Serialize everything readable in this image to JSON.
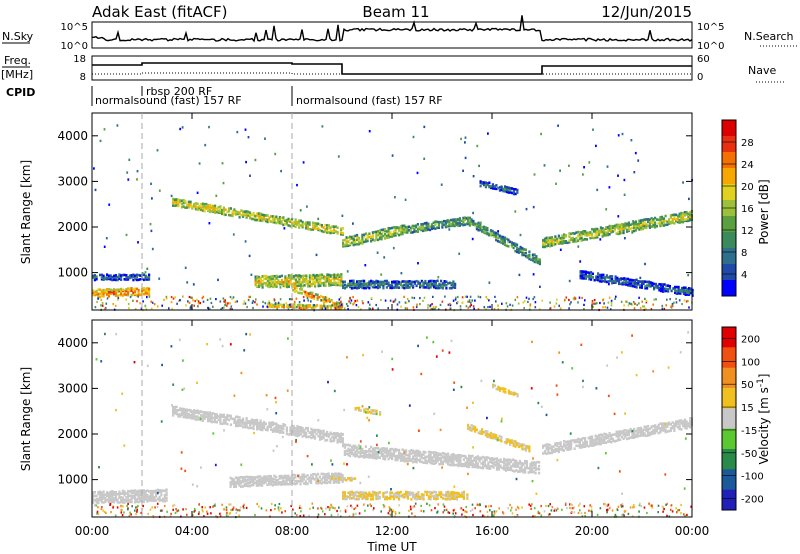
{
  "header": {
    "radar": "Adak East (fitACF)",
    "beam": "Beam 11",
    "date": "12/Jun/2015"
  },
  "top_panels": {
    "nsky_label": "N.Sky",
    "nsky_ticks": [
      "10^5",
      "10^0"
    ],
    "nsearch_label": "N.Search",
    "nsearch_ticks": [
      "10^5",
      "10^0"
    ],
    "freq_label": "Freq.",
    "freq_unit": "[MHz]",
    "freq_ticks": [
      "18",
      "8"
    ],
    "nave_label": "Nave",
    "nave_ticks": [
      "60",
      "0"
    ],
    "cpid_label": "CPID",
    "cpid_segments": [
      {
        "name": "normalsound (fast) 157 RF",
        "start": "00:00",
        "end": "08:00"
      },
      {
        "name": "rbsp 200 RF",
        "start": "02:00",
        "end": "08:00"
      },
      {
        "name": "normalsound (fast) 157 RF",
        "start": "08:00",
        "end": "00:00"
      }
    ]
  },
  "axes": {
    "x_label": "Time UT",
    "x_ticks": [
      "00:00",
      "04:00",
      "08:00",
      "12:00",
      "16:00",
      "20:00",
      "00:00"
    ],
    "y_label": "Slant Range [km]",
    "y_ticks": [
      "1000",
      "2000",
      "3000",
      "4000"
    ]
  },
  "chart_data": [
    {
      "type": "heatmap",
      "panel": "power",
      "xlabel": "Time UT",
      "ylabel": "Slant Range [km]",
      "xlim_hours": [
        0,
        24
      ],
      "ylim_km": [
        180,
        4500
      ],
      "colorbar": {
        "label": "Power [dB]",
        "ticks": [
          "28",
          "24",
          "20",
          "16",
          "12",
          "8",
          "4"
        ],
        "range": [
          0,
          32
        ],
        "colors": [
          "#0000ff",
          "#1f4aa8",
          "#2e6f8e",
          "#3a8a5c",
          "#5aa040",
          "#9cc03a",
          "#e0d020",
          "#f7a800",
          "#f47000",
          "#e83010",
          "#dd0000"
        ]
      },
      "bands": [
        {
          "t0": 0.0,
          "t1": 2.3,
          "r_start": 600,
          "r_end": 650,
          "width": 200,
          "value": 26
        },
        {
          "t0": 0.0,
          "t1": 2.3,
          "r_start": 950,
          "r_end": 950,
          "width": 140,
          "value": 8
        },
        {
          "t0": 3.2,
          "t1": 10.0,
          "r_start": 2600,
          "r_end": 1950,
          "width": 180,
          "value": 20
        },
        {
          "t0": 6.5,
          "t1": 10.0,
          "r_start": 850,
          "r_end": 900,
          "width": 280,
          "value": 20
        },
        {
          "t0": 7.0,
          "t1": 10.0,
          "r_start": 300,
          "r_end": 260,
          "width": 120,
          "value": 22
        },
        {
          "t0": 8.0,
          "t1": 10.0,
          "r_start": 700,
          "r_end": 300,
          "width": 120,
          "value": 24
        },
        {
          "t0": 10.0,
          "t1": 12.5,
          "r_start": 1700,
          "r_end": 2000,
          "width": 220,
          "value": 18
        },
        {
          "t0": 12.5,
          "t1": 15.0,
          "r_start": 2000,
          "r_end": 2200,
          "width": 200,
          "value": 14
        },
        {
          "t0": 15.0,
          "t1": 17.9,
          "r_start": 2200,
          "r_end": 1300,
          "width": 200,
          "value": 14
        },
        {
          "t0": 10.0,
          "t1": 14.5,
          "r_start": 800,
          "r_end": 800,
          "width": 200,
          "value": 10
        },
        {
          "t0": 18.0,
          "t1": 24.0,
          "r_start": 1700,
          "r_end": 2300,
          "width": 220,
          "value": 18
        },
        {
          "t0": 19.5,
          "t1": 24.0,
          "r_start": 1000,
          "r_end": 600,
          "width": 160,
          "value": 8
        },
        {
          "t0": 15.5,
          "t1": 17.0,
          "r_start": 3000,
          "r_end": 2800,
          "width": 120,
          "value": 8
        }
      ]
    },
    {
      "type": "heatmap",
      "panel": "velocity",
      "xlabel": "Time UT",
      "ylabel": "Slant Range [km]",
      "xlim_hours": [
        0,
        24
      ],
      "ylim_km": [
        180,
        4500
      ],
      "colorbar": {
        "label": "Velocity [m s^-1]",
        "ticks": [
          "200",
          "100",
          "50",
          "15",
          "-15",
          "-50",
          "-100",
          "-200"
        ],
        "range": [
          -250,
          250
        ],
        "colors": [
          "#2020b8",
          "#1a5a9a",
          "#2a8a4a",
          "#5ac830",
          "#c8c8c8",
          "#f0c020",
          "#f09020",
          "#f05010",
          "#e00000"
        ]
      },
      "bands": [
        {
          "t0": 0.0,
          "t1": 3.0,
          "r_start": 650,
          "r_end": 700,
          "width": 260,
          "value": 0
        },
        {
          "t0": 3.2,
          "t1": 10.0,
          "r_start": 2550,
          "r_end": 1950,
          "width": 220,
          "value": 0
        },
        {
          "t0": 5.5,
          "t1": 10.0,
          "r_start": 1000,
          "r_end": 1100,
          "width": 240,
          "value": 0
        },
        {
          "t0": 10.0,
          "t1": 17.9,
          "r_start": 1700,
          "r_end": 1300,
          "width": 260,
          "value": 0
        },
        {
          "t0": 18.0,
          "t1": 24.0,
          "r_start": 1700,
          "r_end": 2300,
          "width": 220,
          "value": 0
        },
        {
          "t0": 10.0,
          "t1": 15.0,
          "r_start": 700,
          "r_end": 700,
          "width": 180,
          "value": 30
        },
        {
          "t0": 9.5,
          "t1": 10.5,
          "r_start": 1100,
          "r_end": 1050,
          "width": 100,
          "value": 30
        },
        {
          "t0": 10.5,
          "t1": 11.5,
          "r_start": 2600,
          "r_end": 2500,
          "width": 80,
          "value": 30
        },
        {
          "t0": 16.0,
          "t1": 17.0,
          "r_start": 3100,
          "r_end": 2900,
          "width": 100,
          "value": 30
        },
        {
          "t0": 15.0,
          "t1": 17.5,
          "r_start": 2200,
          "r_end": 1700,
          "width": 120,
          "value": 30
        }
      ]
    }
  ]
}
